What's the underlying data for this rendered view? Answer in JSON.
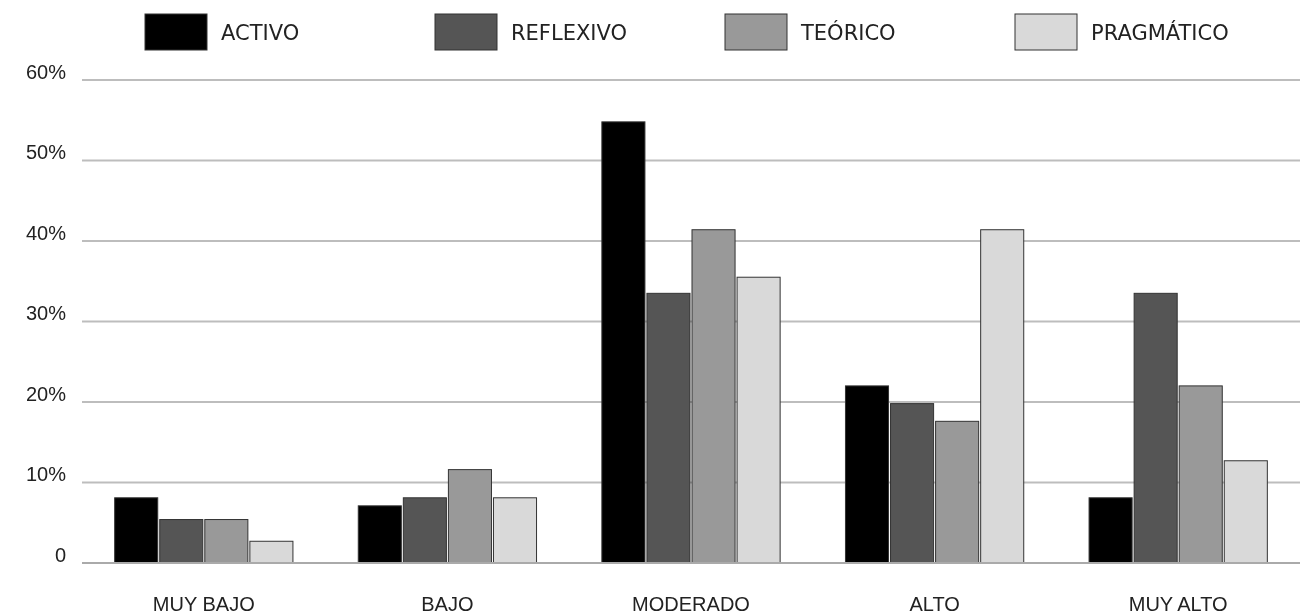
{
  "chart_data": {
    "type": "bar",
    "categories": [
      "MUY BAJO",
      "BAJO",
      "MODERADO",
      "ALTO",
      "MUY ALTO"
    ],
    "series": [
      {
        "name": "ACTIVO",
        "color": "#000000",
        "values": [
          8.1,
          7.1,
          54.8,
          22.0,
          8.1
        ]
      },
      {
        "name": "REFLEXIVO",
        "color": "#555555",
        "values": [
          5.4,
          8.1,
          33.5,
          19.8,
          33.5
        ]
      },
      {
        "name": "TEÓRICO",
        "color": "#999999",
        "values": [
          5.4,
          11.6,
          41.4,
          17.6,
          22.0
        ]
      },
      {
        "name": "PRAGMÁTICO",
        "color": "#d9d9d9",
        "values": [
          2.7,
          8.1,
          35.5,
          41.4,
          12.7
        ]
      }
    ],
    "ylim": [
      0,
      60
    ],
    "yticks": [
      {
        "value": 0,
        "label": "0"
      },
      {
        "value": 10,
        "label": "10%"
      },
      {
        "value": 20,
        "label": "20%"
      },
      {
        "value": 30,
        "label": "30%"
      },
      {
        "value": 40,
        "label": "40%"
      },
      {
        "value": 50,
        "label": "50%"
      },
      {
        "value": 60,
        "label": "60%"
      }
    ],
    "grid": "y",
    "legend": "top"
  }
}
